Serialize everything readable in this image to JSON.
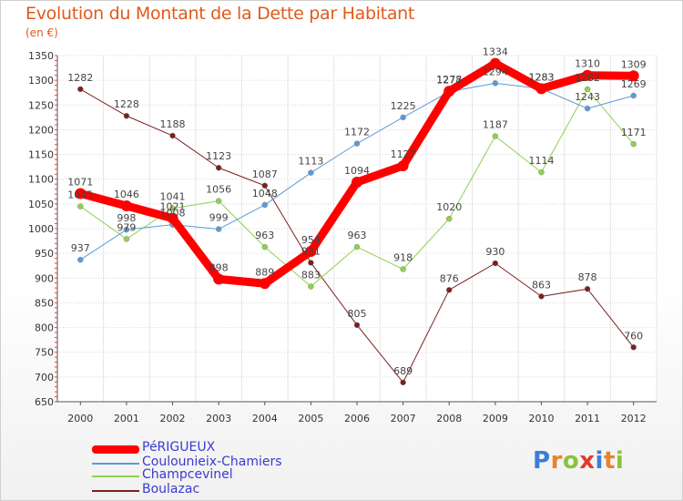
{
  "chart_data": {
    "type": "line",
    "title": "Evolution du Montant de la Dette par Habitant",
    "subtitle": "(en €)",
    "x": [
      "2000",
      "2001",
      "2002",
      "2003",
      "2004",
      "2005",
      "2006",
      "2007",
      "2008",
      "2009",
      "2010",
      "2011",
      "2012"
    ],
    "yticks": [
      650,
      700,
      750,
      800,
      850,
      900,
      950,
      1000,
      1050,
      1100,
      1150,
      1200,
      1250,
      1300,
      1350
    ],
    "ylim": [
      650,
      1350
    ],
    "grid": "horizontal",
    "legend_position": "bottom-left",
    "series": [
      {
        "name": "PéRIGUEUX",
        "color": "#ff0000",
        "values": [
          1071,
          1046,
          1021,
          898,
          889,
          954,
          1094,
          1127,
          1278,
          1334,
          1283,
          1310,
          1309
        ]
      },
      {
        "name": "Coulounieix-Chamiers",
        "color": "#5b9bd5",
        "values": [
          937,
          998,
          1008,
          999,
          1048,
          1113,
          1172,
          1225,
          1277,
          1294,
          1283,
          1243,
          1269
        ]
      },
      {
        "name": "Champcevinel",
        "color": "#8fd14f",
        "values": [
          1045,
          979,
          1041,
          1056,
          963,
          883,
          963,
          918,
          1020,
          1187,
          1114,
          1282,
          1171
        ]
      },
      {
        "name": "Boulazac",
        "color": "#7a1f1f",
        "values": [
          1282,
          1228,
          1188,
          1123,
          1087,
          931,
          805,
          689,
          876,
          930,
          863,
          878,
          760
        ]
      }
    ]
  },
  "logo": {
    "letters": [
      {
        "char": "P",
        "color": "#3b7dd8"
      },
      {
        "char": "r",
        "color": "#e8832a"
      },
      {
        "char": "o",
        "color": "#8ac33c"
      },
      {
        "char": "x",
        "color": "#e23b2e"
      },
      {
        "char": "i",
        "color": "#3b7dd8"
      },
      {
        "char": "t",
        "color": "#e8832a"
      },
      {
        "char": "i",
        "color": "#8ac33c"
      }
    ]
  }
}
